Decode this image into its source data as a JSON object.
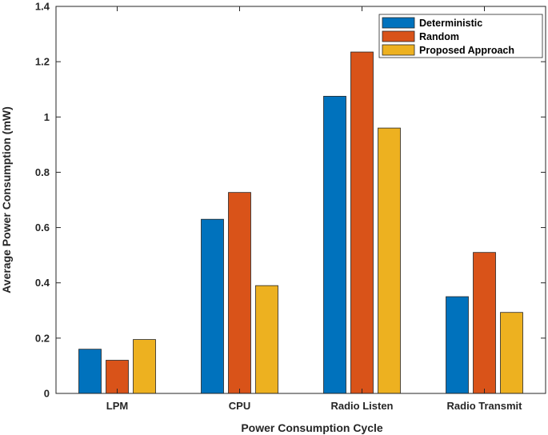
{
  "chart_data": {
    "type": "bar",
    "title": "",
    "xlabel": "Power Consumption Cycle",
    "ylabel": "Average Power Consumption (mW)",
    "categories": [
      "LPM",
      "CPU",
      "Radio Listen",
      "Radio Transmit"
    ],
    "series": [
      {
        "name": "Deterministic",
        "color": "#0072BD",
        "values": [
          0.16,
          0.63,
          1.075,
          0.35
        ]
      },
      {
        "name": "Random",
        "color": "#D95319",
        "values": [
          0.12,
          0.727,
          1.235,
          0.51
        ]
      },
      {
        "name": "Proposed Approach",
        "color": "#EDB120",
        "values": [
          0.195,
          0.39,
          0.96,
          0.293
        ]
      }
    ],
    "ylim": [
      0,
      1.4
    ],
    "yticks": [
      "0",
      "0.2",
      "0.4",
      "0.6",
      "0.8",
      "1",
      "1.2",
      "1.4"
    ],
    "grid": false,
    "legend_position": "top-right"
  }
}
